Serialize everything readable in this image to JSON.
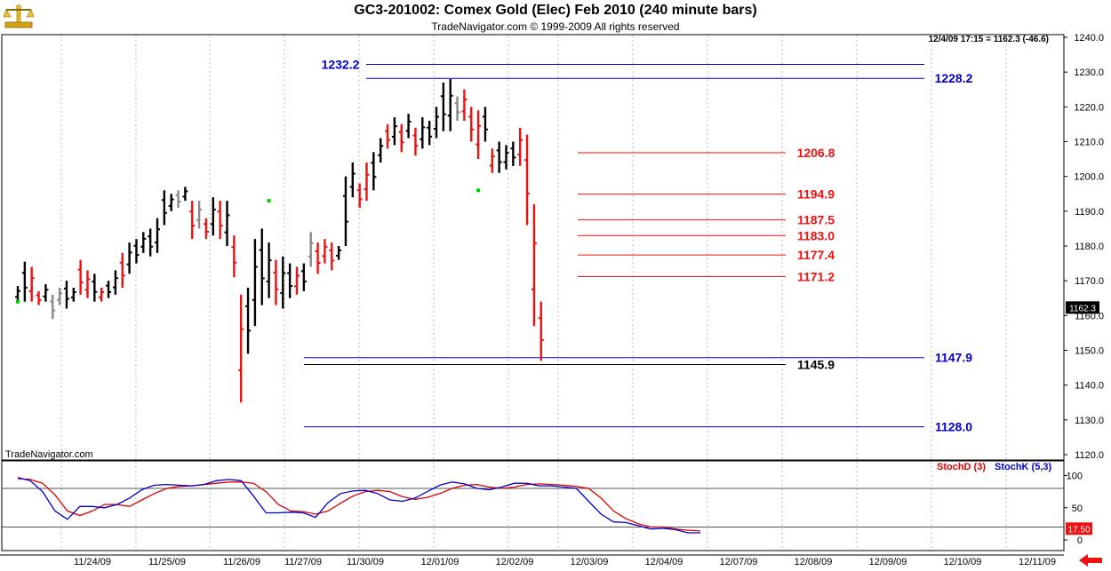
{
  "header": {
    "title": "GC3-201002:  Comex Gold (Elec) Feb 2010  (240 minute bars)",
    "subtitle": "TradeNavigator.com © 1999-2009 All rights reserved",
    "quote": "12/4/09 17:15 = 1162.3 (-46.6)",
    "watermark": "TradeNavigator.com",
    "logo_icon": "gold-scale-logo-icon"
  },
  "chart_data": [
    {
      "type": "ohlc",
      "title": "GC3-201002:  Comex Gold (Elec) Feb 2010  (240 minute bars)",
      "ylim": [
        1120,
        1240
      ],
      "y_ticks": [
        "1240.0",
        "1230.0",
        "1220.0",
        "1210.0",
        "1200.0",
        "1190.0",
        "1180.0",
        "1170.0",
        "1160.0",
        "1150.0",
        "1140.0",
        "1130.0",
        "1120.0"
      ],
      "dates": [
        "11/24/09",
        "11/25/09",
        "11/26/09",
        "11/27/09",
        "11/30/09",
        "12/01/09",
        "12/02/09",
        "12/03/09",
        "12/04/09",
        "12/07/09",
        "12/08/09",
        "12/09/09",
        "12/10/09",
        "12/11/09"
      ],
      "last_price": "1162.3",
      "bar_colors": {
        "up": "#000000",
        "down": "#ee1111",
        "neutral": "#888888",
        "dot": "#00cc00"
      },
      "bars": [
        [
          1168.5,
          1164
        ],
        [
          1175.5,
          1164
        ],
        [
          1174,
          1164
        ],
        [
          1167,
          1163
        ],
        [
          1169,
          1164
        ],
        [
          1166,
          1159
        ],
        [
          1168,
          1163
        ],
        [
          1170,
          1162
        ],
        [
          1168,
          1164
        ],
        [
          1176,
          1166
        ],
        [
          1173,
          1165
        ],
        [
          1172,
          1164
        ],
        [
          1168,
          1164
        ],
        [
          1170,
          1165
        ],
        [
          1173,
          1166
        ],
        [
          1178,
          1168
        ],
        [
          1181,
          1172
        ],
        [
          1182,
          1175
        ],
        [
          1184,
          1178
        ],
        [
          1185,
          1177
        ],
        [
          1188,
          1178
        ],
        [
          1196,
          1186
        ],
        [
          1195,
          1190
        ],
        [
          1196,
          1191
        ],
        [
          1197,
          1193
        ],
        [
          1193,
          1182
        ],
        [
          1193,
          1185
        ],
        [
          1188,
          1182
        ],
        [
          1194,
          1183
        ],
        [
          1193,
          1182
        ],
        [
          1193,
          1180
        ],
        [
          1183,
          1171
        ],
        [
          1166,
          1135
        ],
        [
          1168,
          1149
        ],
        [
          1182,
          1157
        ],
        [
          1185,
          1163
        ],
        [
          1181,
          1165
        ],
        [
          1176,
          1163
        ],
        [
          1177,
          1162
        ],
        [
          1175,
          1165
        ],
        [
          1174,
          1166
        ],
        [
          1175,
          1167
        ],
        [
          1184,
          1174
        ],
        [
          1181,
          1172
        ],
        [
          1182,
          1175
        ],
        [
          1181,
          1173
        ],
        [
          1180,
          1176
        ],
        [
          1200,
          1180
        ],
        [
          1204,
          1194
        ],
        [
          1198,
          1191
        ],
        [
          1204,
          1193
        ],
        [
          1207,
          1196
        ],
        [
          1211,
          1204
        ],
        [
          1215,
          1208
        ],
        [
          1217,
          1209
        ],
        [
          1215,
          1207
        ],
        [
          1218,
          1211
        ],
        [
          1214,
          1206
        ],
        [
          1217,
          1208
        ],
        [
          1216,
          1209
        ],
        [
          1220,
          1211
        ],
        [
          1227,
          1213
        ],
        [
          1228,
          1213
        ],
        [
          1223,
          1216
        ],
        [
          1225,
          1216
        ],
        [
          1220,
          1210
        ],
        [
          1219,
          1205
        ],
        [
          1220,
          1210
        ],
        [
          1208,
          1201
        ],
        [
          1210,
          1201
        ],
        [
          1209,
          1202
        ],
        [
          1210,
          1203
        ],
        [
          1214,
          1203
        ],
        [
          1212,
          1186
        ],
        [
          1192,
          1157
        ],
        [
          1164,
          1147
        ]
      ],
      "support_lines": [
        {
          "label": "1232.2",
          "value": 1232.2,
          "color": "#0000cc"
        },
        {
          "label": "1228.2",
          "value": 1228.2,
          "color": "#0000cc"
        },
        {
          "label": "1147.9",
          "value": 1147.9,
          "color": "#0000cc"
        },
        {
          "label": "1128.0",
          "value": 1128.0,
          "color": "#0000cc"
        }
      ],
      "fib_lines": [
        {
          "label": "1206.8",
          "value": 1206.8
        },
        {
          "label": "1194.9",
          "value": 1194.9
        },
        {
          "label": "1187.5",
          "value": 1187.5
        },
        {
          "label": "1183.0",
          "value": 1183.0
        },
        {
          "label": "1177.4",
          "value": 1177.4
        },
        {
          "label": "1171.2",
          "value": 1171.2
        }
      ],
      "black_line": {
        "label": "1145.9",
        "value": 1145.9
      }
    },
    {
      "type": "line",
      "ylim": [
        0,
        100
      ],
      "y_ticks": [
        "100",
        "50",
        "0"
      ],
      "reference_lines": [
        80,
        20
      ],
      "last_value": "17.50",
      "series": [
        {
          "name": "StochD (3)",
          "color": "#dd0000",
          "values": [
            95,
            94,
            88,
            70,
            45,
            38,
            45,
            55,
            55,
            52,
            62,
            72,
            80,
            83,
            84,
            86,
            88,
            90,
            90,
            88,
            75,
            55,
            45,
            44,
            40,
            45,
            57,
            68,
            75,
            77,
            75,
            67,
            63,
            66,
            72,
            80,
            85,
            86,
            82,
            80,
            82,
            86,
            87,
            86,
            85,
            83,
            80,
            65,
            45,
            33,
            25,
            20,
            20,
            17,
            15,
            14
          ]
        },
        {
          "name": "StochK (5,3)",
          "color": "#0000cc",
          "values": [
            97,
            92,
            75,
            45,
            32,
            52,
            52,
            50,
            55,
            65,
            78,
            85,
            86,
            85,
            84,
            86,
            92,
            94,
            92,
            68,
            42,
            42,
            43,
            42,
            35,
            58,
            72,
            76,
            77,
            72,
            62,
            60,
            65,
            75,
            85,
            90,
            87,
            80,
            78,
            82,
            88,
            88,
            84,
            84,
            82,
            80,
            60,
            40,
            28,
            27,
            22,
            17,
            18,
            16,
            11,
            11
          ]
        }
      ]
    }
  ]
}
